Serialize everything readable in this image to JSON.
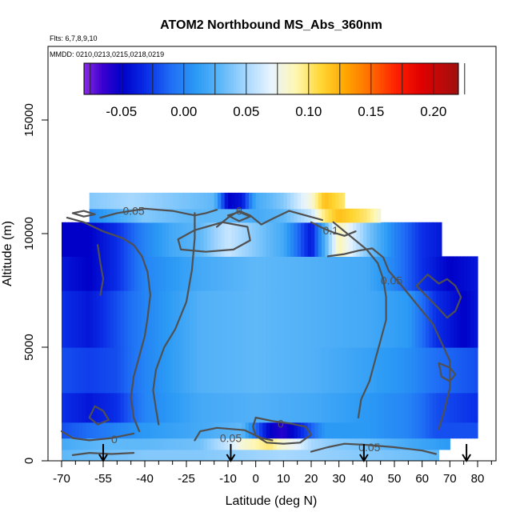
{
  "chart_data": {
    "type": "heatmap",
    "title": "ATOM2 Northbound MS_Abs_360nm",
    "subtitle_lines": [
      "Flts: 6,7,8,9,10",
      "MMDD: 0210,0213,0215,0218,0219"
    ],
    "xlabel": "Latitude (deg N)",
    "ylabel": "Altitude (m)",
    "xlim": [
      -70,
      85
    ],
    "ylim": [
      0,
      17000
    ],
    "x_ticks": [
      -70,
      -55,
      -40,
      -25,
      -10,
      0,
      10,
      20,
      30,
      40,
      50,
      60,
      70,
      80
    ],
    "x_minor_ticks": [
      -65,
      -60,
      -50,
      -45,
      -35,
      -30,
      -20,
      -15,
      -5,
      5,
      15,
      25,
      35,
      45,
      55,
      65,
      75,
      85
    ],
    "y_ticks": [
      0,
      5000,
      10000,
      15000
    ],
    "colorbar": {
      "min": -0.08,
      "max": 0.22,
      "ticks": [
        -0.05,
        0.0,
        0.05,
        0.1,
        0.15,
        0.2
      ],
      "tick_labels": [
        "-0.05",
        "0.00",
        "0.05",
        "0.10",
        "0.15",
        "0.20"
      ],
      "stops": [
        {
          "value": -0.08,
          "color": "#8a2be2"
        },
        {
          "value": -0.065,
          "color": "#3a00d0"
        },
        {
          "value": -0.05,
          "color": "#0000c8"
        },
        {
          "value": -0.03,
          "color": "#0a2ee8"
        },
        {
          "value": -0.01,
          "color": "#1f6ff5"
        },
        {
          "value": 0.01,
          "color": "#2b9af5"
        },
        {
          "value": 0.03,
          "color": "#5fb8f8"
        },
        {
          "value": 0.05,
          "color": "#a8d8ff"
        },
        {
          "value": 0.07,
          "color": "#e8f4ff"
        },
        {
          "value": 0.09,
          "color": "#fff7b0"
        },
        {
          "value": 0.11,
          "color": "#ffd633"
        },
        {
          "value": 0.13,
          "color": "#ffa500"
        },
        {
          "value": 0.15,
          "color": "#ff6a00"
        },
        {
          "value": 0.17,
          "color": "#ff2000"
        },
        {
          "value": 0.19,
          "color": "#e00000"
        },
        {
          "value": 0.22,
          "color": "#a01010"
        }
      ]
    },
    "profile_latitudes": [
      -55,
      -9,
      39,
      76
    ],
    "contour_labels": [
      {
        "text": "0.05",
        "lat": -44,
        "alt": 10950
      },
      {
        "text": "0",
        "lat": -6,
        "alt": 10950
      },
      {
        "text": "0.1",
        "lat": 27,
        "alt": 10100
      },
      {
        "text": "0.05",
        "lat": 49,
        "alt": 7900
      },
      {
        "text": "0",
        "lat": -51,
        "alt": 900
      },
      {
        "text": "0",
        "lat": 9,
        "alt": 1600
      },
      {
        "text": "0.05",
        "lat": -9,
        "alt": 950
      },
      {
        "text": "0.05",
        "lat": 41,
        "alt": 550
      }
    ],
    "bands": [
      {
        "alt_bottom": 0,
        "alt_top": 500,
        "lat_min": -70,
        "lat_max": 66,
        "lat_nodes": [
          -70,
          -55,
          -40,
          -20,
          -5,
          10,
          25,
          40,
          55,
          66
        ],
        "values": [
          0.03,
          0.035,
          0.04,
          0.04,
          0.045,
          0.05,
          0.045,
          0.04,
          0.035,
          0.03
        ]
      },
      {
        "alt_bottom": 500,
        "alt_top": 1000,
        "lat_min": -70,
        "lat_max": 70,
        "lat_nodes": [
          -70,
          -55,
          -40,
          -20,
          -10,
          -5,
          0,
          5,
          10,
          15,
          20,
          30,
          40,
          55,
          70
        ],
        "values": [
          0.02,
          0.03,
          0.03,
          0.035,
          0.06,
          0.08,
          0.09,
          0.1,
          0.08,
          0.07,
          0.05,
          0.04,
          0.035,
          0.02,
          0.01
        ]
      },
      {
        "alt_bottom": 1000,
        "alt_top": 1700,
        "lat_min": -70,
        "lat_max": 80,
        "lat_nodes": [
          -70,
          -60,
          -50,
          -40,
          -20,
          -5,
          5,
          10,
          15,
          25,
          40,
          55,
          65,
          80
        ],
        "values": [
          -0.02,
          -0.01,
          0.0,
          0.01,
          0.02,
          0.03,
          -0.05,
          -0.06,
          -0.04,
          0.01,
          0.01,
          0.0,
          -0.02,
          -0.02
        ]
      },
      {
        "alt_bottom": 1700,
        "alt_top": 3000,
        "lat_min": -70,
        "lat_max": 80,
        "lat_nodes": [
          -70,
          -60,
          -50,
          -40,
          -20,
          0,
          20,
          40,
          55,
          65,
          80
        ],
        "values": [
          -0.03,
          -0.04,
          -0.03,
          0.0,
          0.02,
          0.025,
          0.02,
          0.01,
          0.0,
          -0.02,
          -0.03
        ]
      },
      {
        "alt_bottom": 3000,
        "alt_top": 5000,
        "lat_min": -70,
        "lat_max": 80,
        "lat_nodes": [
          -70,
          -60,
          -50,
          -40,
          -20,
          0,
          20,
          40,
          55,
          65,
          80
        ],
        "values": [
          -0.02,
          -0.025,
          -0.02,
          0.0,
          0.025,
          0.03,
          0.025,
          0.015,
          0.005,
          -0.01,
          -0.02
        ]
      },
      {
        "alt_bottom": 5000,
        "alt_top": 7500,
        "lat_min": -70,
        "lat_max": 80,
        "lat_nodes": [
          -70,
          -60,
          -50,
          -40,
          -20,
          0,
          20,
          40,
          55,
          65,
          75,
          80
        ],
        "values": [
          -0.03,
          -0.04,
          -0.02,
          0.0,
          0.025,
          0.03,
          0.025,
          0.02,
          0.01,
          -0.03,
          -0.05,
          -0.04
        ]
      },
      {
        "alt_bottom": 7500,
        "alt_top": 9000,
        "lat_min": -70,
        "lat_max": 80,
        "lat_nodes": [
          -70,
          -60,
          -50,
          -40,
          -20,
          0,
          20,
          40,
          50,
          60,
          70,
          80
        ],
        "values": [
          -0.04,
          -0.05,
          -0.03,
          0.0,
          0.02,
          0.03,
          0.025,
          0.02,
          0.0,
          -0.03,
          -0.05,
          -0.04
        ]
      },
      {
        "alt_bottom": 9000,
        "alt_top": 10500,
        "lat_min": -70,
        "lat_max": 67,
        "lat_nodes": [
          -70,
          -60,
          -50,
          -40,
          -30,
          -20,
          -10,
          -5,
          0,
          10,
          20,
          30,
          40,
          50,
          60,
          67
        ],
        "values": [
          -0.05,
          -0.05,
          -0.03,
          0.0,
          0.02,
          0.03,
          0.06,
          0.05,
          0.04,
          0.02,
          -0.04,
          0.09,
          0.04,
          0.0,
          -0.03,
          -0.04
        ]
      },
      {
        "alt_bottom": 10500,
        "alt_top": 11100,
        "lat_min": -60,
        "lat_max": 45,
        "lat_nodes": [
          -60,
          -50,
          -40,
          -25,
          -10,
          0,
          10,
          20,
          25,
          30,
          40,
          45
        ],
        "values": [
          0.0,
          0.02,
          0.04,
          0.03,
          0.03,
          0.02,
          0.03,
          0.06,
          0.1,
          0.12,
          0.1,
          0.08
        ]
      },
      {
        "alt_bottom": 11100,
        "alt_top": 11800,
        "lat_min": -60,
        "lat_max": 32,
        "lat_nodes": [
          -60,
          -45,
          -30,
          -15,
          -10,
          -5,
          0,
          10,
          20,
          25,
          32
        ],
        "values": [
          0.04,
          0.05,
          0.04,
          0.03,
          -0.05,
          -0.04,
          0.02,
          0.04,
          0.08,
          0.12,
          0.1
        ]
      }
    ],
    "contours": [
      {
        "value": "0.05",
        "points": [
          [
            -56,
            10700
          ],
          [
            -50,
            10900
          ],
          [
            -40,
            11100
          ],
          [
            -30,
            11000
          ],
          [
            -22,
            10800
          ],
          [
            -18,
            10900
          ],
          [
            -14,
            11050
          ]
        ]
      },
      {
        "value": "0",
        "points": [
          [
            -14,
            10300
          ],
          [
            -10,
            10700
          ],
          [
            -6,
            11000
          ],
          [
            -2,
            10800
          ],
          [
            2,
            10400
          ],
          [
            6,
            10650
          ],
          [
            12,
            11000
          ],
          [
            18,
            10800
          ],
          [
            24,
            10600
          ]
        ]
      },
      {
        "value": "0.05",
        "points": [
          [
            -28,
            9750
          ],
          [
            -22,
            10150
          ],
          [
            -12,
            10500
          ],
          [
            -3,
            10300
          ],
          [
            -2,
            9700
          ],
          [
            -8,
            9300
          ],
          [
            -18,
            9200
          ],
          [
            -27,
            9300
          ],
          [
            -28,
            9750
          ]
        ]
      },
      {
        "value": "0.1",
        "points": [
          [
            20,
            10500
          ],
          [
            24,
            10250
          ],
          [
            28,
            10050
          ],
          [
            32,
            9900
          ],
          [
            36,
            10100
          ]
        ]
      },
      {
        "value": "0.05",
        "points": [
          [
            26,
            9000
          ],
          [
            32,
            9100
          ],
          [
            37,
            9250
          ],
          [
            42,
            9350
          ],
          [
            46,
            8950
          ],
          [
            48,
            8350
          ],
          [
            52,
            7800
          ],
          [
            56,
            7200
          ],
          [
            60,
            6600
          ],
          [
            64,
            6000
          ],
          [
            67,
            5200
          ],
          [
            70,
            4400
          ],
          [
            70,
            3200
          ],
          [
            68,
            2200
          ],
          [
            66,
            1400
          ]
        ]
      },
      {
        "value": "0",
        "points": [
          [
            -68,
            10700
          ],
          [
            -62,
            10500
          ],
          [
            -55,
            10100
          ],
          [
            -48,
            9800
          ],
          [
            -44,
            9500
          ],
          [
            -41,
            9000
          ],
          [
            -39,
            8300
          ],
          [
            -38,
            7300
          ],
          [
            -39,
            6300
          ],
          [
            -40,
            5500
          ],
          [
            -42,
            4600
          ],
          [
            -44,
            3700
          ],
          [
            -45,
            2800
          ],
          [
            -44,
            1900
          ],
          [
            -42,
            1300
          ]
        ]
      },
      {
        "value": "0",
        "points": [
          [
            -22,
            10900
          ],
          [
            -22,
            9800
          ],
          [
            -23,
            8400
          ],
          [
            -25,
            7000
          ],
          [
            -29,
            5800
          ],
          [
            -33,
            5000
          ],
          [
            -36,
            4000
          ],
          [
            -37,
            3100
          ],
          [
            -36,
            2300
          ],
          [
            -35,
            1600
          ]
        ]
      },
      {
        "value": "0",
        "points": [
          [
            28,
            10500
          ],
          [
            34,
            9900
          ],
          [
            40,
            9300
          ],
          [
            44,
            8700
          ],
          [
            46,
            8000
          ],
          [
            47,
            7200
          ],
          [
            47,
            6200
          ],
          [
            45,
            5300
          ],
          [
            43,
            4400
          ],
          [
            41,
            3500
          ],
          [
            38,
            2700
          ],
          [
            37,
            1900
          ]
        ]
      },
      {
        "value": "0",
        "points": [
          [
            58,
            7700
          ],
          [
            62,
            7200
          ],
          [
            66,
            6700
          ],
          [
            69,
            6300
          ],
          [
            72,
            6600
          ],
          [
            74,
            7200
          ],
          [
            72,
            7700
          ],
          [
            69,
            8000
          ],
          [
            66,
            7800
          ],
          [
            62,
            8200
          ],
          [
            58,
            7700
          ]
        ]
      },
      {
        "value": "0",
        "points": [
          [
            -58,
            2400
          ],
          [
            -55,
            2200
          ],
          [
            -53,
            1800
          ],
          [
            -57,
            1600
          ],
          [
            -60,
            1900
          ],
          [
            -58,
            2400
          ]
        ]
      },
      {
        "value": "0",
        "points": [
          [
            -70,
            1300
          ],
          [
            -66,
            1000
          ],
          [
            -60,
            900
          ],
          [
            -52,
            1000
          ],
          [
            -44,
            1200
          ]
        ]
      },
      {
        "value": "0.05",
        "points": [
          [
            -22,
            900
          ],
          [
            -20,
            1300
          ],
          [
            -14,
            1450
          ],
          [
            -4,
            1350
          ],
          [
            2,
            1000
          ],
          [
            6,
            900
          ]
        ]
      },
      {
        "value": "0",
        "points": [
          [
            0,
            1900
          ],
          [
            6,
            1750
          ],
          [
            12,
            1650
          ],
          [
            18,
            1500
          ],
          [
            20,
            1150
          ],
          [
            16,
            800
          ],
          [
            10,
            750
          ],
          [
            4,
            800
          ],
          [
            0,
            1100
          ],
          [
            -1,
            1500
          ],
          [
            0,
            1900
          ]
        ]
      },
      {
        "value": "0.05",
        "points": [
          [
            20,
            400
          ],
          [
            26,
            600
          ],
          [
            32,
            750
          ],
          [
            40,
            700
          ],
          [
            50,
            600
          ],
          [
            60,
            450
          ],
          [
            65,
            300
          ]
        ]
      },
      {
        "value": "0",
        "points": [
          [
            -66,
            250
          ],
          [
            -60,
            350
          ],
          [
            -52,
            300
          ],
          [
            -44,
            350
          ]
        ]
      },
      {
        "value": "0",
        "points": [
          [
            -57,
            9500
          ],
          [
            -56,
            8700
          ],
          [
            -55,
            8000
          ],
          [
            -56,
            7300
          ]
        ]
      },
      {
        "value": "0",
        "points": [
          [
            66,
            4300
          ],
          [
            70,
            4100
          ],
          [
            72,
            3800
          ],
          [
            70,
            3500
          ],
          [
            67,
            3700
          ],
          [
            66,
            4300
          ]
        ]
      },
      {
        "value": "0",
        "points": [
          [
            -66,
            10900
          ],
          [
            -62,
            10750
          ],
          [
            -58,
            10850
          ],
          [
            -62,
            11000
          ],
          [
            -66,
            10900
          ]
        ]
      },
      {
        "value": "0",
        "points": [
          [
            -10,
            10800
          ],
          [
            -6,
            10550
          ],
          [
            -2,
            10750
          ],
          [
            -6,
            10950
          ],
          [
            -10,
            10800
          ]
        ]
      }
    ]
  }
}
